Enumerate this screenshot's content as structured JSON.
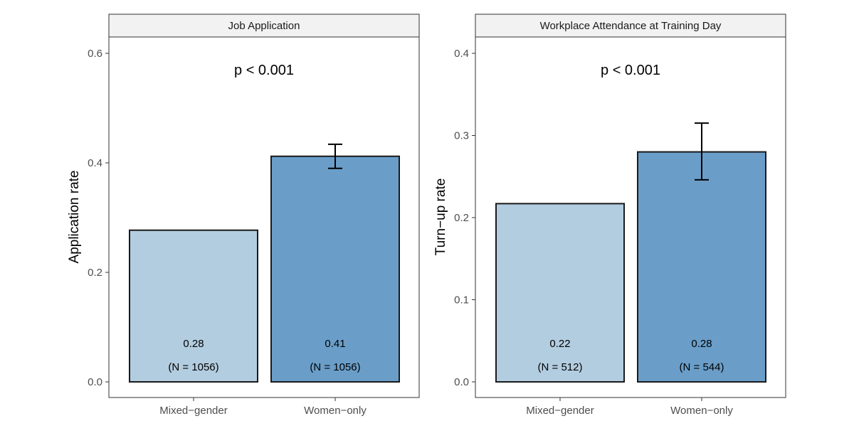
{
  "chart_data": [
    {
      "type": "bar",
      "title": "Job Application",
      "xlabel": "",
      "ylabel": "Application rate",
      "ylim": [
        0,
        0.6
      ],
      "yticks": [
        "0.0",
        "0.2",
        "0.4",
        "0.6"
      ],
      "ytick_values": [
        0,
        0.2,
        0.4,
        0.6
      ],
      "annotation": "p < 0.001",
      "categories": [
        "Mixed−gender",
        "Women−only"
      ],
      "values": [
        0.277,
        0.412
      ],
      "value_labels": [
        "0.28",
        "0.41"
      ],
      "n_labels": [
        "(N = 1056)",
        "(N = 1056)"
      ],
      "error_bars": [
        null,
        {
          "low": 0.39,
          "high": 0.434
        }
      ],
      "colors": [
        "#b3cde0",
        "#6a9ec9"
      ],
      "grid": false
    },
    {
      "type": "bar",
      "title": "Workplace Attendance at Training Day",
      "xlabel": "",
      "ylabel": "Turn−up rate",
      "ylim": [
        0,
        0.4
      ],
      "yticks": [
        "0.0",
        "0.1",
        "0.2",
        "0.3",
        "0.4"
      ],
      "ytick_values": [
        0,
        0.1,
        0.2,
        0.3,
        0.4
      ],
      "annotation": "p < 0.001",
      "categories": [
        "Mixed−gender",
        "Women−only"
      ],
      "values": [
        0.217,
        0.28
      ],
      "value_labels": [
        "0.22",
        "0.28"
      ],
      "n_labels": [
        "(N = 512)",
        "(N = 544)"
      ],
      "error_bars": [
        null,
        {
          "low": 0.246,
          "high": 0.315
        }
      ],
      "colors": [
        "#b3cde0",
        "#6a9ec9"
      ],
      "grid": false
    }
  ]
}
